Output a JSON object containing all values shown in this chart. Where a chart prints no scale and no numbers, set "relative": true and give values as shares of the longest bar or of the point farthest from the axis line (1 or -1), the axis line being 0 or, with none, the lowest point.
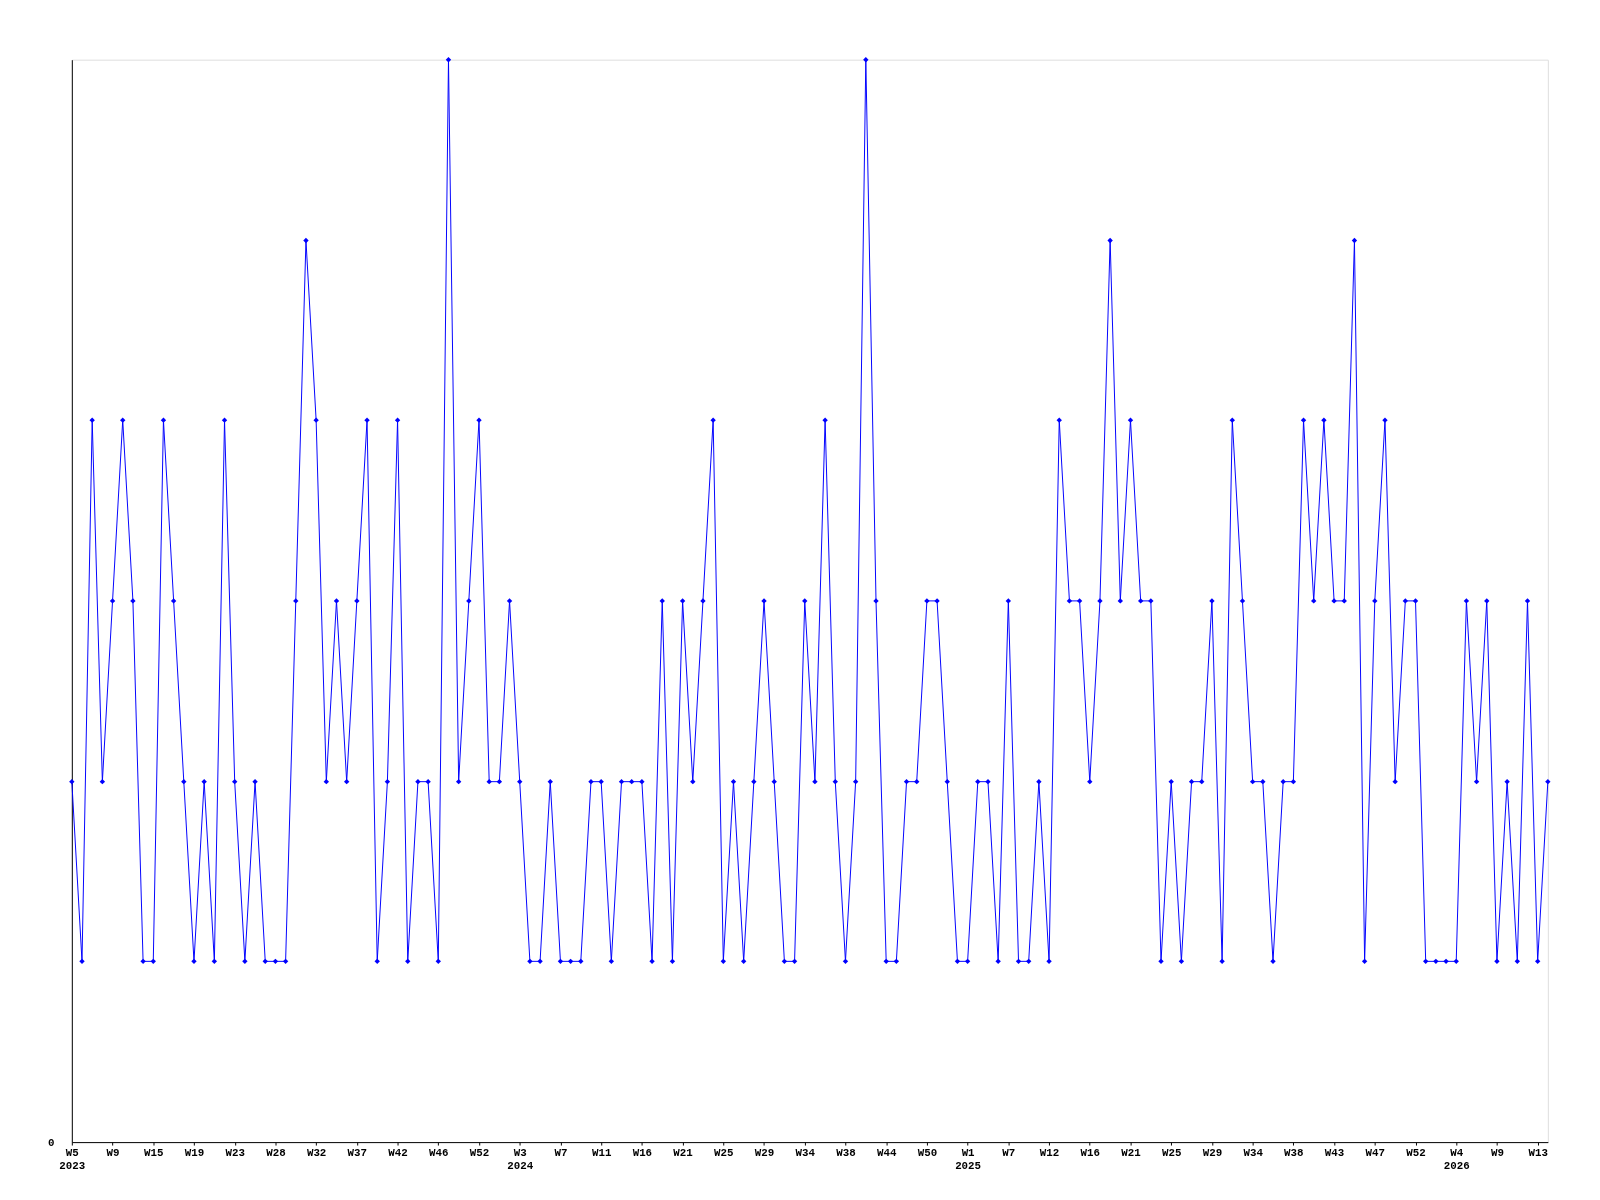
{
  "chart_data": {
    "type": "line",
    "relative": true,
    "marker": "diamond",
    "line_style": "solid",
    "grid": false,
    "annotations": [
      "0"
    ],
    "categories": [
      "W5\n2023",
      null,
      null,
      null,
      "W9",
      null,
      null,
      null,
      "W15",
      null,
      null,
      null,
      "W19",
      null,
      null,
      null,
      "W23",
      null,
      null,
      null,
      "W28",
      null,
      null,
      null,
      "W32",
      null,
      null,
      null,
      "W37",
      null,
      null,
      null,
      "W42",
      null,
      null,
      null,
      "W46",
      null,
      null,
      null,
      "W52",
      null,
      null,
      null,
      "W3\n2024",
      null,
      null,
      null,
      "W7",
      null,
      null,
      null,
      "W11",
      null,
      null,
      null,
      "W16",
      null,
      null,
      null,
      "W21",
      null,
      null,
      null,
      "W25",
      null,
      null,
      null,
      "W29",
      null,
      null,
      null,
      "W34",
      null,
      null,
      null,
      "W38",
      null,
      null,
      null,
      "W44",
      null,
      null,
      null,
      "W50",
      null,
      null,
      null,
      "W1\n2025",
      null,
      null,
      null,
      "W7",
      null,
      null,
      null,
      "W12",
      null,
      null,
      null,
      "W16",
      null,
      null,
      null,
      "W21",
      null,
      null,
      null,
      "W25",
      null,
      null,
      null,
      "W29",
      null,
      null,
      null,
      "W34",
      null,
      null,
      null,
      "W38",
      null,
      null,
      null,
      "W43",
      null,
      null,
      null,
      "W47",
      null,
      null,
      null,
      "W52",
      null,
      null,
      null,
      "W4\n2026",
      null,
      null,
      null,
      "W9",
      null,
      null,
      null,
      "W13",
      null
    ],
    "series": [
      {
        "color": "#0000ff",
        "values": [
          0.333,
          0.167,
          0.667,
          0.333,
          0.5,
          0.667,
          0.5,
          0.167,
          0.167,
          0.667,
          0.5,
          0.333,
          0.167,
          0.333,
          0.167,
          0.667,
          0.333,
          0.167,
          0.333,
          0.167,
          0.167,
          0.167,
          0.5,
          0.833,
          0.667,
          0.333,
          0.5,
          0.333,
          0.5,
          0.667,
          0.167,
          0.333,
          0.667,
          0.167,
          0.333,
          0.333,
          0.167,
          1,
          0.333,
          0.5,
          0.667,
          0.333,
          0.333,
          0.5,
          0.333,
          0.167,
          0.167,
          0.333,
          0.167,
          0.167,
          0.167,
          0.333,
          0.333,
          0.167,
          0.333,
          0.333,
          0.333,
          0.167,
          0.5,
          0.167,
          0.5,
          0.333,
          0.5,
          0.667,
          0.167,
          0.333,
          0.167,
          0.333,
          0.5,
          0.333,
          0.167,
          0.167,
          0.5,
          0.333,
          0.667,
          0.333,
          0.167,
          0.333,
          1,
          0.5,
          0.167,
          0.167,
          0.333,
          0.333,
          0.5,
          0.5,
          0.333,
          0.167,
          0.167,
          0.333,
          0.333,
          0.167,
          0.5,
          0.167,
          0.167,
          0.333,
          0.167,
          0.667,
          0.5,
          0.5,
          0.333,
          0.5,
          0.833,
          0.5,
          0.667,
          0.5,
          0.5,
          0.167,
          0.333,
          0.167,
          0.333,
          0.333,
          0.5,
          0.167,
          0.667,
          0.5,
          0.333,
          0.333,
          0.167,
          0.333,
          0.333,
          0.667,
          0.5,
          0.667,
          0.5,
          0.5,
          0.833,
          0.167,
          0.5,
          0.667,
          0.333,
          0.5,
          0.5,
          0.167,
          0.167,
          0.167,
          0.167,
          0.5,
          0.333,
          0.5,
          0.167,
          0.333,
          0.167,
          0.5,
          0.167,
          0.333
        ]
      }
    ]
  }
}
